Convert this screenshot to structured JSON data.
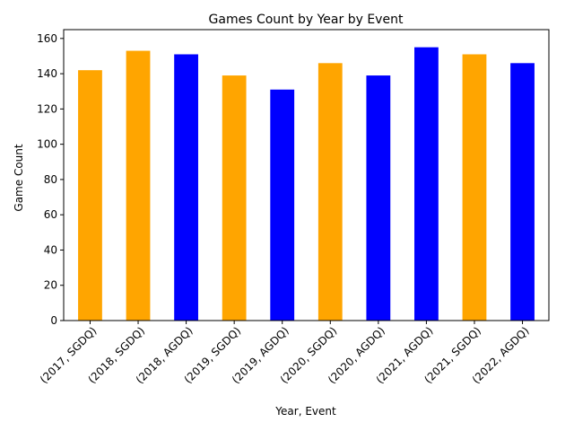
{
  "chart_data": {
    "type": "bar",
    "title": "Games Count by Year by Event",
    "xlabel": "Year, Event",
    "ylabel": "Game Count",
    "categories": [
      "(2017, SGDQ)",
      "(2018, SGDQ)",
      "(2018, AGDQ)",
      "(2019, SGDQ)",
      "(2019, AGDQ)",
      "(2020, SGDQ)",
      "(2020, AGDQ)",
      "(2021, AGDQ)",
      "(2021, SGDQ)",
      "(2022, AGDQ)"
    ],
    "values": [
      142,
      153,
      151,
      139,
      131,
      146,
      139,
      155,
      151,
      146
    ],
    "bar_colors": [
      "#ffa500",
      "#ffa500",
      "#0000ff",
      "#ffa500",
      "#0000ff",
      "#ffa500",
      "#0000ff",
      "#0000ff",
      "#ffa500",
      "#0000ff"
    ],
    "ylim": [
      0,
      165
    ],
    "yticks": [
      0,
      20,
      40,
      60,
      80,
      100,
      120,
      140,
      160
    ],
    "grid": false,
    "legend": "none"
  }
}
